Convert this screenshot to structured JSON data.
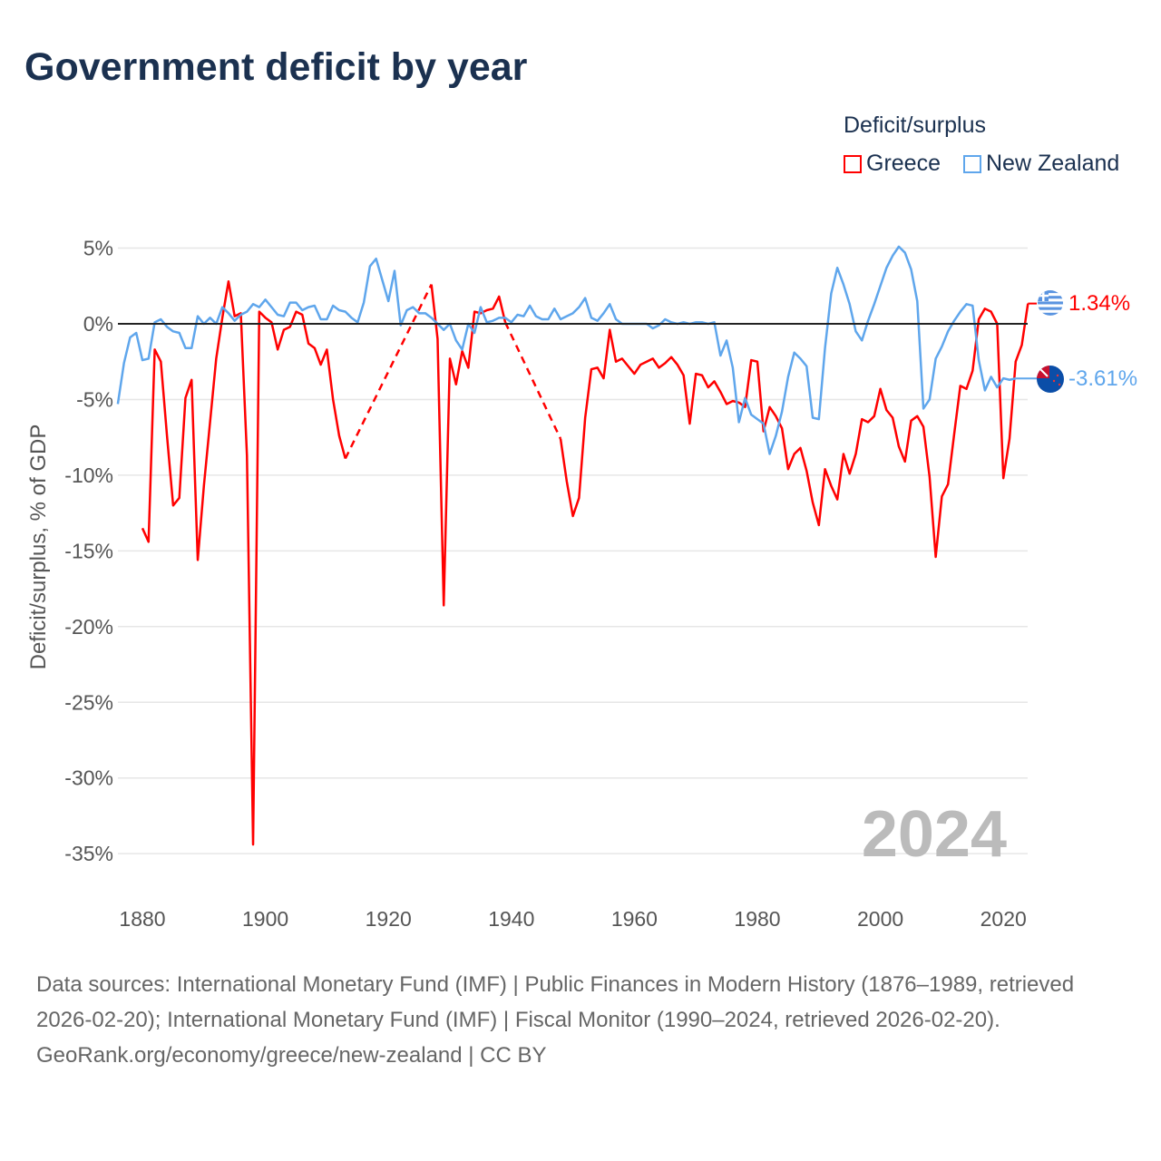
{
  "title": "Government deficit by year",
  "legend": {
    "title": "Deficit/surplus",
    "items": [
      {
        "label": "Greece",
        "color": "#ff0000"
      },
      {
        "label": "New Zealand",
        "color": "#5fa6ec"
      }
    ]
  },
  "year_label": "2024",
  "end_labels": {
    "greece": "1.34%",
    "new_zealand": "-3.61%"
  },
  "footer": {
    "sources": "Data sources: International Monetary Fund (IMF) | Public Finances in Modern History (1876–1989, retrieved 2026-02-20); International Monetary Fund (IMF) | Fiscal Monitor (1990–2024, retrieved 2026-02-20).",
    "credit": "GeoRank.org/economy/greece/new-zealand | CC BY"
  },
  "chart_data": {
    "type": "line",
    "title": "Government deficit by year",
    "xlabel": "",
    "ylabel": "Deficit/surplus, % of GDP",
    "xlim": [
      1876,
      2024
    ],
    "ylim": [
      -38,
      6
    ],
    "yticks": [
      5,
      0,
      -5,
      -10,
      -15,
      -20,
      -25,
      -30,
      -35
    ],
    "ytick_labels": [
      "5%",
      "0%",
      "-5%",
      "-10%",
      "-15%",
      "-20%",
      "-25%",
      "-30%",
      "-35%"
    ],
    "xticks": [
      1880,
      1900,
      1920,
      1940,
      1960,
      1980,
      2000,
      2020
    ],
    "xtick_labels": [
      "1880",
      "1900",
      "1920",
      "1940",
      "1960",
      "1980",
      "2000",
      "2020"
    ],
    "grid": true,
    "legend_position": "top-right",
    "series": [
      {
        "name": "Greece",
        "color": "#ff0000",
        "start_year": 1880,
        "values": [
          -13.5,
          -14.4,
          -1.7,
          -2.5,
          -7.4,
          -12,
          -11.5,
          -4.9,
          -3.7,
          -15.6,
          -10.7,
          -6.5,
          -2.3,
          0.4,
          2.8,
          0.5,
          0.7,
          -8.7,
          -34.4,
          0.8,
          0.4,
          0.1,
          -1.7,
          -0.4,
          -0.2,
          0.8,
          0.6,
          -1.3,
          -1.6,
          -2.7,
          -1.7,
          -5,
          -7.4,
          -8.9,
          null,
          null,
          null,
          null,
          null,
          null,
          null,
          null,
          null,
          null,
          null,
          null,
          null,
          2.6,
          -1.0,
          -18.6,
          -2.3,
          -4,
          -1.8,
          -2.9,
          0.8,
          0.7,
          0.9,
          1.0,
          1.8,
          0.1,
          null,
          null,
          null,
          null,
          null,
          null,
          null,
          null,
          -7.6,
          -10.4,
          -12.7,
          -11.5,
          -6.2,
          -3,
          -2.9,
          -3.6,
          -0.4,
          -2.5,
          -2.3,
          -2.8,
          -3.3,
          -2.7,
          -2.5,
          -2.3,
          -2.9,
          -2.6,
          -2.2,
          -2.7,
          -3.4,
          -6.6,
          -3.3,
          -3.4,
          -4.2,
          -3.8,
          -4.5,
          -5.3,
          -5.1,
          -5.2,
          -5.5,
          -2.4,
          -2.5,
          -7.1,
          -5.5,
          -6.1,
          -6.9,
          -9.6,
          -8.6,
          -8.2,
          -9.7,
          -11.8,
          -13.3,
          -9.6,
          -10.7,
          -11.6,
          -8.6,
          -9.9,
          -8.6,
          -6.3,
          -6.5,
          -6.1,
          -4.3,
          -5.7,
          -6.2,
          -8.1,
          -9.1,
          -6.4,
          -6.1,
          -6.8,
          -10.1,
          -15.4,
          -11.4,
          -10.6,
          -7.3,
          -4.1,
          -4.3,
          -3.1,
          0.3,
          1.0,
          0.8,
          0.0,
          -10.2,
          -7.6,
          -2.5,
          -1.4,
          1.34
        ]
      },
      {
        "name": "New Zealand",
        "color": "#5fa6ec",
        "start_year": 1876,
        "values": [
          -5.3,
          -2.6,
          -0.9,
          -0.6,
          -2.4,
          -2.3,
          0.1,
          0.3,
          -0.2,
          -0.5,
          -0.6,
          -1.6,
          -1.6,
          0.5,
          0,
          0.4,
          0,
          1.1,
          0.7,
          0.2,
          0.6,
          0.8,
          1.3,
          1.1,
          1.6,
          1.1,
          0.6,
          0.5,
          1.4,
          1.4,
          0.9,
          1.1,
          1.2,
          0.3,
          0.3,
          1.2,
          0.9,
          0.8,
          0.4,
          0.1,
          1.4,
          3.8,
          4.3,
          2.9,
          1.5,
          3.5,
          -0.1,
          0.9,
          1.1,
          0.7,
          0.7,
          0.4,
          0,
          -0.4,
          0,
          -1.1,
          -1.7,
          0,
          -0.6,
          1.1,
          0.1,
          0.2,
          0.4,
          0.4,
          0.1,
          0.6,
          0.5,
          1.2,
          0.5,
          0.3,
          0.3,
          1.0,
          0.3,
          0.5,
          0.7,
          1.1,
          1.7,
          0.4,
          0.2,
          0.7,
          1.3,
          0.3,
          0,
          0,
          0,
          0,
          0,
          -0.3,
          -0.1,
          0.3,
          0.1,
          0,
          0.1,
          0,
          0.1,
          0.1,
          0,
          0.1,
          -2.1,
          -1.1,
          -2.9,
          -6.5,
          -4.9,
          -6,
          -6.3,
          -6.6,
          -8.6,
          -7.4,
          -5.8,
          -3.5,
          -1.9,
          -2.3,
          -2.8,
          -6.2,
          -6.3,
          -1.6,
          2,
          3.7,
          2.6,
          1.3,
          -0.5,
          -1.1,
          0.2,
          1.3,
          2.5,
          3.7,
          4.5,
          5.1,
          4.7,
          3.6,
          1.5,
          -5.6,
          -5.0,
          -2.3,
          -1.5,
          -0.5,
          0.2,
          0.8,
          1.3,
          1.2,
          -2.4,
          -4.4,
          -3.5,
          -4.2,
          -3.6,
          -3.7,
          -3.61
        ]
      }
    ]
  }
}
